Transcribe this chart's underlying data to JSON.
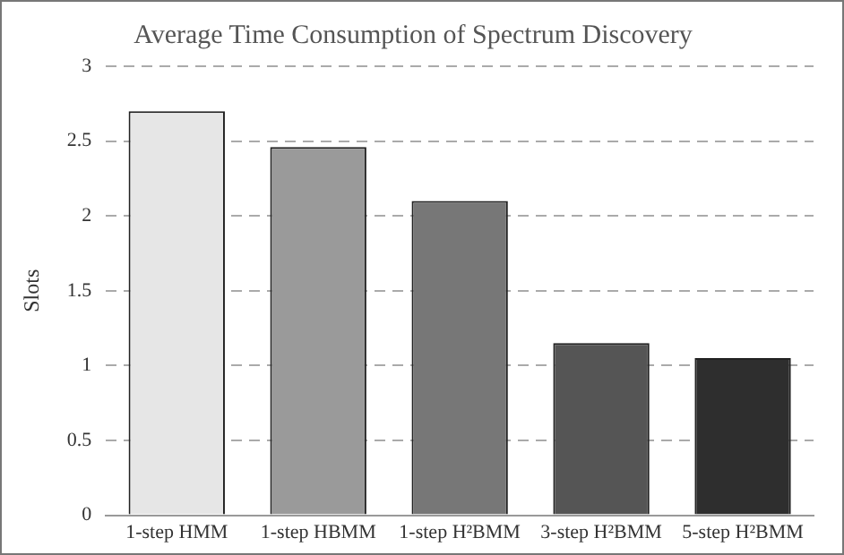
{
  "chart_data": {
    "type": "bar",
    "title": "Average Time Consumption of Spectrum Discovery",
    "ylabel": "Slots",
    "categories": [
      "1-step HMM",
      "1-step HBMM",
      "1-step H²BMM",
      "3-step H²BMM",
      "5-step H²BMM"
    ],
    "values": [
      2.7,
      2.46,
      2.1,
      1.15,
      1.05
    ],
    "colors": [
      "#e6e6e6",
      "#9a9a9a",
      "#777777",
      "#555555",
      "#2e2e2e"
    ],
    "ylim": [
      0,
      3
    ],
    "yticks": [
      0,
      0.5,
      1,
      1.5,
      2,
      2.5,
      3
    ],
    "grid": "y",
    "legend": false
  }
}
